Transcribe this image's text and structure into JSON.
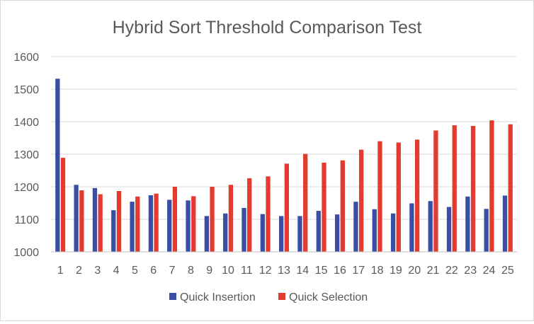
{
  "chart_data": {
    "type": "bar",
    "title": "Hybrid Sort Threshold Comparison Test",
    "xlabel": "",
    "ylabel": "",
    "categories": [
      "1",
      "2",
      "3",
      "4",
      "5",
      "6",
      "7",
      "8",
      "9",
      "10",
      "11",
      "12",
      "13",
      "14",
      "15",
      "16",
      "17",
      "18",
      "19",
      "20",
      "21",
      "22",
      "23",
      "24",
      "25"
    ],
    "ylim": [
      1000,
      1600
    ],
    "yticks": [
      "1000",
      "1100",
      "1200",
      "1300",
      "1400",
      "1500",
      "1600"
    ],
    "grid": true,
    "legend_position": "bottom",
    "series": [
      {
        "name": "Quick Insertion",
        "color": "#3a4fa3",
        "values": [
          1532,
          1206,
          1196,
          1128,
          1154,
          1174,
          1160,
          1158,
          1110,
          1118,
          1135,
          1116,
          1110,
          1110,
          1126,
          1115,
          1154,
          1131,
          1118,
          1149,
          1156,
          1138,
          1170,
          1132,
          1173
        ]
      },
      {
        "name": "Quick Selection",
        "color": "#e33b30",
        "values": [
          1289,
          1189,
          1177,
          1187,
          1170,
          1179,
          1200,
          1171,
          1200,
          1206,
          1226,
          1232,
          1271,
          1301,
          1274,
          1281,
          1314,
          1340,
          1336,
          1345,
          1373,
          1389,
          1387,
          1404,
          1392
        ]
      }
    ]
  }
}
